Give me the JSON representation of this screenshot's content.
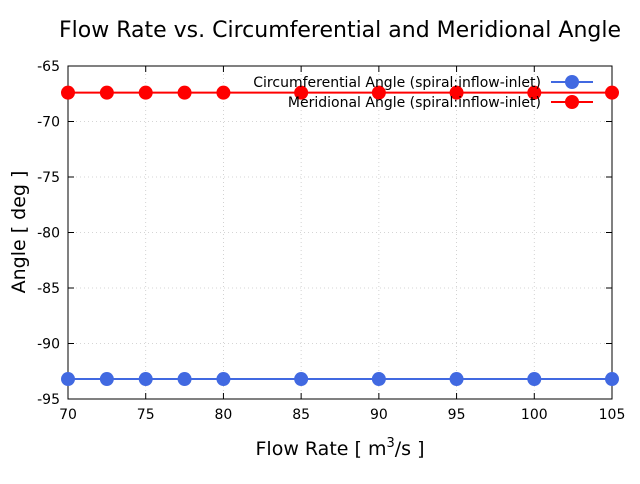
{
  "chart_data": {
    "type": "line",
    "title": "Flow Rate vs. Circumferential and Meridional Angle",
    "xlabel_main": "Flow Rate [ m",
    "xlabel_sup": "3",
    "xlabel_tail": "/s ]",
    "ylabel": "Angle [ deg ]",
    "xlim": [
      70,
      105
    ],
    "ylim": [
      -95,
      -65
    ],
    "xticks": [
      70,
      75,
      80,
      85,
      90,
      95,
      100,
      105
    ],
    "yticks": [
      -95,
      -90,
      -85,
      -80,
      -75,
      -70,
      -65
    ],
    "grid": true,
    "legend_position": "top-right",
    "x": [
      70,
      72.5,
      75,
      77.5,
      80,
      85,
      90,
      95,
      100,
      105
    ],
    "series": [
      {
        "name": "Circumferential Angle (spiral:inflow-inlet)",
        "color": "#4169e1",
        "values": [
          -93.2,
          -93.2,
          -93.2,
          -93.2,
          -93.2,
          -93.2,
          -93.2,
          -93.2,
          -93.2,
          -93.2
        ]
      },
      {
        "name": "Meridional Angle (spiral:inflow-inlet)",
        "color": "#ff0000",
        "values": [
          -67.4,
          -67.4,
          -67.4,
          -67.4,
          -67.4,
          -67.4,
          -67.4,
          -67.4,
          -67.4,
          -67.4
        ]
      }
    ]
  }
}
